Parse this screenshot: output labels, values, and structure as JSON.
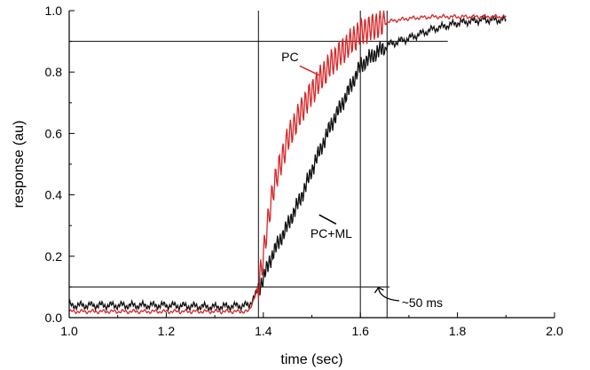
{
  "chart_data": {
    "type": "line",
    "xlabel": "time (sec)",
    "ylabel": "response (au)",
    "xlim": [
      1.0,
      2.0
    ],
    "ylim": [
      0.0,
      1.0
    ],
    "xticks": [
      "1.0",
      "1.2",
      "1.4",
      "1.6",
      "1.8",
      "2.0"
    ],
    "yticks": [
      "0.0",
      "0.2",
      "0.4",
      "0.6",
      "0.8",
      "1.0"
    ],
    "grid": false,
    "colors": {
      "pc": "#d62728",
      "pcml": "#111111",
      "ref": "#222222"
    },
    "reference_lines": {
      "hlines": [
        {
          "y": 0.9,
          "x": [
            1.0,
            1.78
          ]
        },
        {
          "y": 0.1,
          "x": [
            1.0,
            1.66
          ]
        }
      ],
      "vlines": [
        1.39,
        1.6,
        1.655
      ]
    },
    "series": [
      {
        "name": "PC",
        "x": [
          1.0,
          1.1,
          1.2,
          1.3,
          1.37,
          1.39,
          1.42,
          1.45,
          1.48,
          1.51,
          1.54,
          1.57,
          1.6,
          1.63,
          1.66,
          1.7,
          1.75,
          1.8,
          1.85,
          1.9
        ],
        "y": [
          0.02,
          0.02,
          0.02,
          0.02,
          0.02,
          0.1,
          0.42,
          0.58,
          0.68,
          0.76,
          0.83,
          0.88,
          0.93,
          0.95,
          0.965,
          0.975,
          0.98,
          0.98,
          0.98,
          0.98
        ]
      },
      {
        "name": "PC+ML",
        "x": [
          1.0,
          1.1,
          1.2,
          1.3,
          1.37,
          1.39,
          1.42,
          1.45,
          1.48,
          1.51,
          1.54,
          1.57,
          1.6,
          1.63,
          1.66,
          1.7,
          1.75,
          1.8,
          1.85,
          1.9
        ],
        "y": [
          0.04,
          0.04,
          0.04,
          0.035,
          0.04,
          0.09,
          0.21,
          0.3,
          0.4,
          0.52,
          0.63,
          0.72,
          0.82,
          0.86,
          0.89,
          0.91,
          0.94,
          0.96,
          0.97,
          0.97
        ]
      }
    ],
    "annotations": [
      {
        "text": "PC",
        "series": "PC"
      },
      {
        "text": "PC+ML",
        "series": "PC+ML"
      },
      {
        "text": "~50 ms"
      }
    ]
  }
}
